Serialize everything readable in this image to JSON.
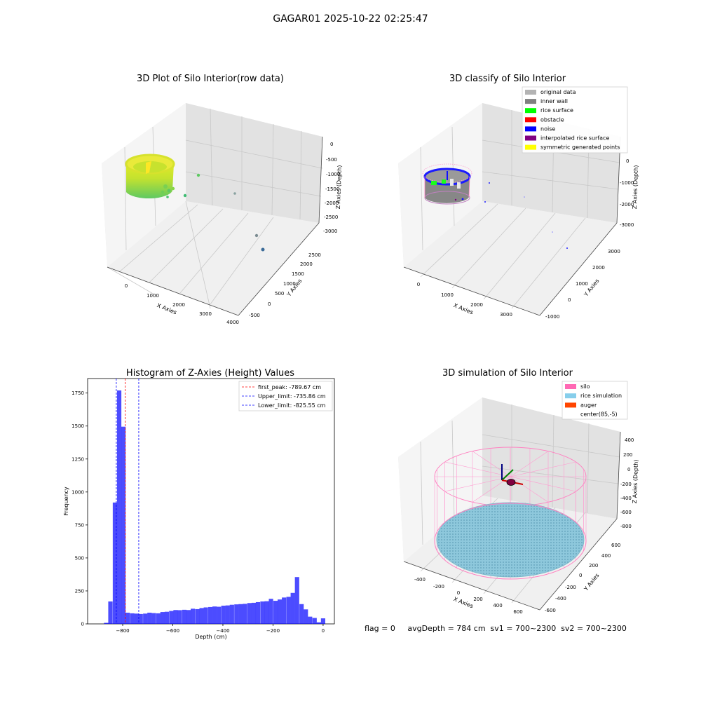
{
  "figure_title": "GAGAR01 2025-10-22 02:25:47",
  "footer_text": "flag = 0     avgDepth = 784 cm  sv1 = 700~2300  sv2 = 700~2300",
  "chart_data": [
    {
      "type": "scatter",
      "subtype": "3d",
      "title": "3D Plot of Silo Interior(row data)",
      "xlabel": "X Axies",
      "ylabel": "Y Axies",
      "zlabel": "Z Axies (Depth)",
      "x_ticks": [
        "0",
        "1000",
        "2000",
        "3000",
        "4000"
      ],
      "y_ticks": [
        "-500",
        "0",
        "500",
        "1000",
        "1500",
        "2000",
        "2500"
      ],
      "z_ticks": [
        "0",
        "-500",
        "-1000",
        "-1500",
        "-2000",
        "-2500",
        "-3000"
      ],
      "grid": true,
      "colormap": "viridis",
      "outlier_points": [
        {
          "x": 1400,
          "y": 1600,
          "z": -1050
        },
        {
          "x": 2700,
          "y": 1800,
          "z": -1650
        },
        {
          "x": 3400,
          "y": 400,
          "z": -2700
        },
        {
          "x": 3500,
          "y": 300,
          "z": -3050
        },
        {
          "x": 800,
          "y": 900,
          "z": -1750
        }
      ]
    },
    {
      "type": "scatter",
      "subtype": "3d",
      "title": "3D classify of Silo Interior",
      "xlabel": "X Axies",
      "ylabel": "Y Axies",
      "zlabel": "Z Axies (Depth)",
      "x_ticks": [
        "0",
        "1000",
        "2000",
        "3000"
      ],
      "y_ticks": [
        "-1000",
        "0",
        "1000",
        "2000",
        "3000"
      ],
      "z_ticks": [
        "0",
        "-1000",
        "-2000",
        "-3000"
      ],
      "grid": true,
      "legend_position": "top-right",
      "legend": [
        {
          "label": "original data",
          "color": "#b3b3b3"
        },
        {
          "label": "inner wall",
          "color": "#808080"
        },
        {
          "label": "rice surface",
          "color": "#00ff00"
        },
        {
          "label": "obstacle",
          "color": "#ff0000"
        },
        {
          "label": "noise",
          "color": "#0000ff"
        },
        {
          "label": "interpolated rice surface",
          "color": "#800080"
        },
        {
          "label": "symmetric generated points",
          "color": "#ffff00"
        }
      ]
    },
    {
      "type": "bar",
      "subtype": "histogram",
      "title": "Histogram of Z-Axies (Height) Values",
      "xlabel": "Depth (cm)",
      "ylabel": "Frequency",
      "xlim": [
        -940,
        45
      ],
      "ylim": [
        0,
        1860
      ],
      "x_ticks": [
        -800,
        -600,
        -400,
        -200,
        0
      ],
      "y_ticks": [
        0,
        250,
        500,
        750,
        1000,
        1250,
        1500,
        1750
      ],
      "bin_width": 17.3,
      "bar_color": "#0000ff",
      "bins": [
        {
          "x": -866,
          "count": 8
        },
        {
          "x": -849,
          "count": 170
        },
        {
          "x": -831,
          "count": 920
        },
        {
          "x": -814,
          "count": 1770
        },
        {
          "x": -797,
          "count": 1495
        },
        {
          "x": -780,
          "count": 85
        },
        {
          "x": -762,
          "count": 80
        },
        {
          "x": -745,
          "count": 78
        },
        {
          "x": -728,
          "count": 75
        },
        {
          "x": -710,
          "count": 78
        },
        {
          "x": -693,
          "count": 85
        },
        {
          "x": -676,
          "count": 82
        },
        {
          "x": -658,
          "count": 80
        },
        {
          "x": -641,
          "count": 90
        },
        {
          "x": -624,
          "count": 92
        },
        {
          "x": -606,
          "count": 98
        },
        {
          "x": -589,
          "count": 105
        },
        {
          "x": -572,
          "count": 104
        },
        {
          "x": -554,
          "count": 107
        },
        {
          "x": -537,
          "count": 105
        },
        {
          "x": -520,
          "count": 115
        },
        {
          "x": -502,
          "count": 112
        },
        {
          "x": -485,
          "count": 120
        },
        {
          "x": -468,
          "count": 125
        },
        {
          "x": -450,
          "count": 128
        },
        {
          "x": -433,
          "count": 132
        },
        {
          "x": -416,
          "count": 130
        },
        {
          "x": -398,
          "count": 138
        },
        {
          "x": -381,
          "count": 140
        },
        {
          "x": -364,
          "count": 145
        },
        {
          "x": -346,
          "count": 148
        },
        {
          "x": -329,
          "count": 150
        },
        {
          "x": -312,
          "count": 152
        },
        {
          "x": -294,
          "count": 158
        },
        {
          "x": -277,
          "count": 160
        },
        {
          "x": -260,
          "count": 165
        },
        {
          "x": -242,
          "count": 170
        },
        {
          "x": -225,
          "count": 172
        },
        {
          "x": -208,
          "count": 190
        },
        {
          "x": -190,
          "count": 175
        },
        {
          "x": -173,
          "count": 185
        },
        {
          "x": -156,
          "count": 200
        },
        {
          "x": -138,
          "count": 205
        },
        {
          "x": -121,
          "count": 235
        },
        {
          "x": -104,
          "count": 355
        },
        {
          "x": -86,
          "count": 150
        },
        {
          "x": -69,
          "count": 110
        },
        {
          "x": -52,
          "count": 55
        },
        {
          "x": -34,
          "count": 45
        },
        {
          "x": -17,
          "count": 12
        },
        {
          "x": 0,
          "count": 42
        }
      ],
      "legend_position": "top-right",
      "vlines": [
        {
          "label": "first_peak: -789.67 cm",
          "x": -789.67,
          "color": "#ff0000"
        },
        {
          "label": "Upper_limit: -735.86 cm",
          "x": -735.86,
          "color": "#0000ff"
        },
        {
          "label": "Lower_limit: -825.55 cm",
          "x": -825.55,
          "color": "#0000ff"
        }
      ]
    },
    {
      "type": "scatter",
      "subtype": "3d",
      "title": "3D simulation of Silo Interior",
      "xlabel": "X Axies",
      "ylabel": "Y Axies",
      "zlabel": "Z Axies (Depth)",
      "x_ticks": [
        "-400",
        "-200",
        "0",
        "200",
        "400",
        "600"
      ],
      "y_ticks": [
        "-600",
        "-400",
        "-200",
        "0",
        "200",
        "400",
        "600"
      ],
      "z_ticks": [
        "400",
        "200",
        "0",
        "-200",
        "-400",
        "-600",
        "-800"
      ],
      "grid": true,
      "legend_position": "top-right",
      "legend": [
        {
          "label": "silo",
          "color": "#ff69b4"
        },
        {
          "label": "rice simulation",
          "color": "#87ceeb"
        },
        {
          "label": "auger",
          "color": "#ff4500"
        },
        {
          "label": "center(85,-5)",
          "color": ""
        }
      ]
    }
  ]
}
